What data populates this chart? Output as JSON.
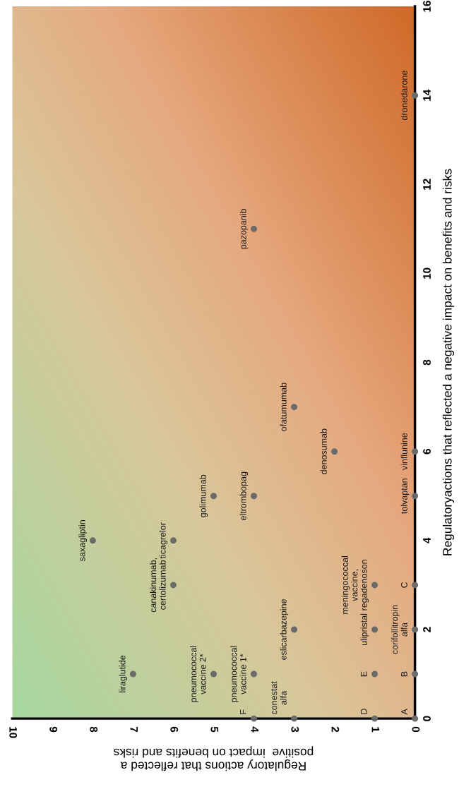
{
  "chart_data": {
    "type": "scatter",
    "xlabel": "Regulatory actions that reflected a\npositive  impact on benefits and risks",
    "ylabel": "Regulatoryactions that reflected a negative impact on benefits and risks",
    "x": [
      0,
      0,
      0,
      0,
      1,
      1,
      1,
      1,
      4,
      3,
      3,
      7,
      5,
      4,
      6,
      6,
      8,
      5,
      4,
      0,
      2,
      0,
      3,
      4,
      0
    ],
    "series": [
      {
        "color": "#6b6b6b",
        "values": [
          0,
          1,
          3,
          2,
          0,
          1,
          3,
          2,
          0,
          0,
          2,
          1,
          1,
          1,
          3,
          4,
          4,
          5,
          5,
          5,
          6,
          6,
          7,
          11,
          14
        ]
      }
    ],
    "annotations": [
      {
        "text": "A",
        "x": 0,
        "y": 0
      },
      {
        "text": "B",
        "x": 0,
        "y": 1
      },
      {
        "text": "C",
        "x": 0,
        "y": 3
      },
      {
        "text": "corifollitropin\nalfa",
        "x": 0,
        "y": 2
      },
      {
        "text": "D",
        "x": 1,
        "y": 0
      },
      {
        "text": "E",
        "x": 1,
        "y": 1
      },
      {
        "text": "meningococcal\nvaccine,\nregadenoson",
        "x": 1,
        "y": 3
      },
      {
        "text": "ulipristal",
        "x": 1,
        "y": 2
      },
      {
        "text": "F",
        "x": 4,
        "y": 0
      },
      {
        "text": "conestat\nalfa",
        "x": 3,
        "y": 0
      },
      {
        "text": "eslicarbazepine",
        "x": 3,
        "y": 2
      },
      {
        "text": "liraglutide",
        "x": 7,
        "y": 1
      },
      {
        "text": "pneumococcal\nvaccine 2*",
        "x": 5,
        "y": 1
      },
      {
        "text": "pneumococcal\nvaccine 1*",
        "x": 4,
        "y": 1
      },
      {
        "text": "canakinumab,\ncertolizumab",
        "x": 6,
        "y": 3
      },
      {
        "text": "ticagrelor",
        "x": 6,
        "y": 4
      },
      {
        "text": "saxagliptin",
        "x": 8,
        "y": 4
      },
      {
        "text": "golimumab",
        "x": 5,
        "y": 5
      },
      {
        "text": "eltrombopag",
        "x": 4,
        "y": 5
      },
      {
        "text": "tolvaptan",
        "x": 0,
        "y": 5
      },
      {
        "text": "denosumab",
        "x": 2,
        "y": 6
      },
      {
        "text": "vinflunine",
        "x": 0,
        "y": 6
      },
      {
        "text": "ofatumumab",
        "x": 3,
        "y": 7
      },
      {
        "text": "pazopanib",
        "x": 4,
        "y": 11
      },
      {
        "text": "dronedarone",
        "x": 0,
        "y": 14
      }
    ],
    "xlim": [
      10,
      0
    ],
    "xticks": [
      10,
      9,
      8,
      7,
      6,
      5,
      4,
      3,
      2,
      1,
      0
    ],
    "ylim": [
      0,
      16
    ],
    "yticks": [
      0,
      2,
      4,
      6,
      8,
      10,
      12,
      14,
      16
    ],
    "marker": "circle",
    "grid": false,
    "legend": false
  }
}
